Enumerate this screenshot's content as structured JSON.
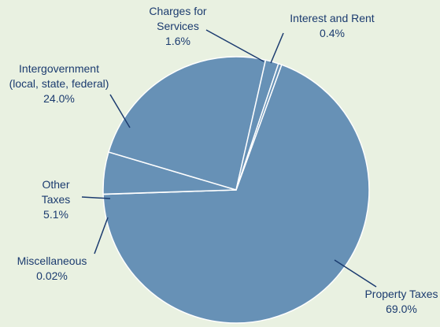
{
  "chart_data": {
    "type": "pie",
    "categories": [
      "Property Taxes",
      "Miscellaneous",
      "Other Taxes",
      "Intergovernment (local, state, federal)",
      "Charges for Services",
      "Interest and Rent"
    ],
    "values": [
      69.0,
      0.02,
      5.1,
      24.0,
      1.6,
      0.4
    ],
    "value_labels": [
      "69.0%",
      "0.02%",
      "5.1%",
      "24.0%",
      "1.6%",
      "0.4%"
    ],
    "color": "#6791b6"
  }
}
